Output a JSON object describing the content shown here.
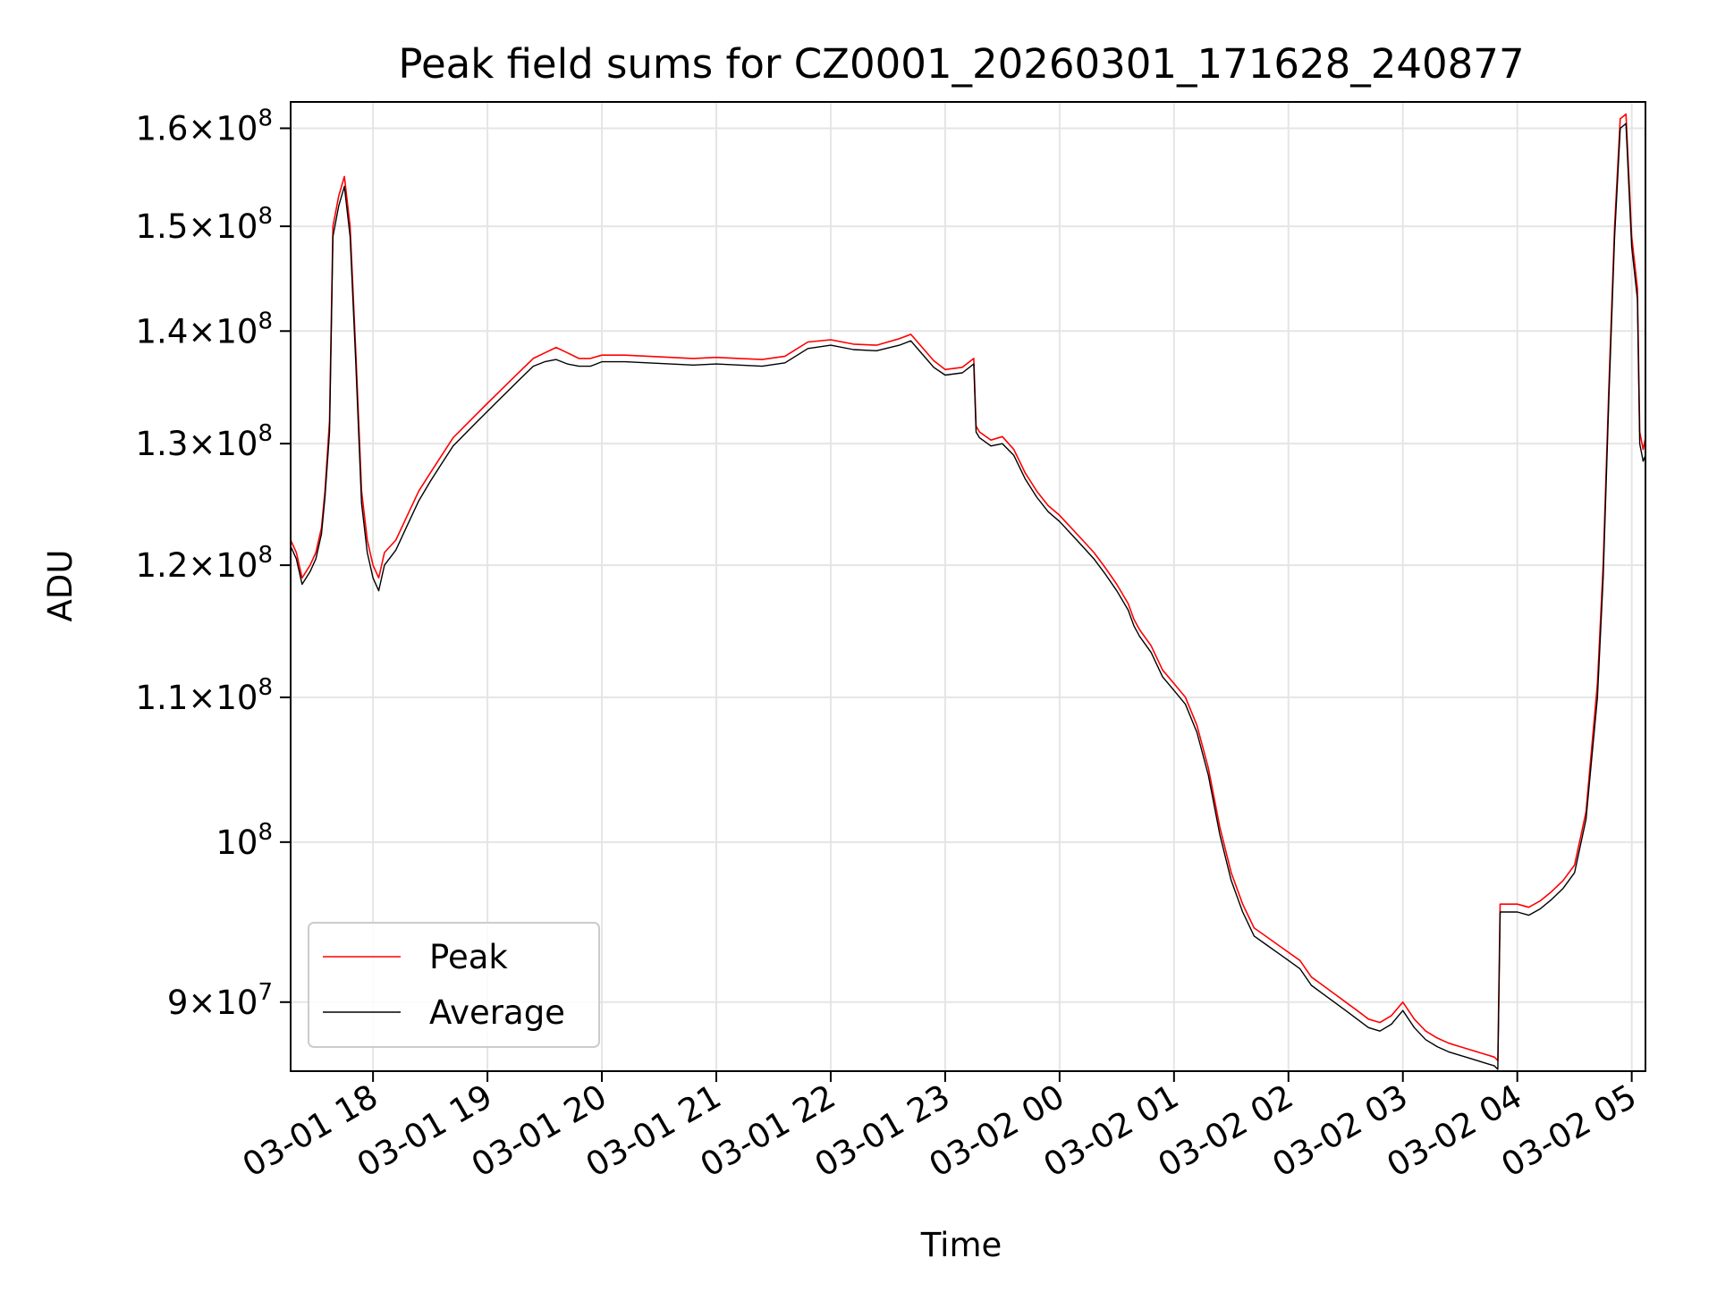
{
  "chart_data": {
    "type": "line",
    "title": "Peak field sums for CZ0001_20260301_171628_240877",
    "xlabel": "Time",
    "ylabel": "ADU",
    "yscale": "log",
    "grid": true,
    "legend_position": "lower-left",
    "x_ticks": [
      "03-01 18",
      "03-01 19",
      "03-01 20",
      "03-01 21",
      "03-01 22",
      "03-01 23",
      "03-02 00",
      "03-02 01",
      "03-02 02",
      "03-02 03",
      "03-02 04",
      "03-02 05"
    ],
    "x_tick_hours": [
      18,
      19,
      20,
      21,
      22,
      23,
      24,
      25,
      26,
      27,
      28,
      29
    ],
    "xlim_hours": [
      17.28,
      29.12
    ],
    "y_ticks": [
      {
        "value": 90000000,
        "mantissa": "9",
        "exponent": "7"
      },
      {
        "value": 100000000,
        "mantissa": "",
        "exponent": "8"
      },
      {
        "value": 110000000,
        "mantissa": "1.1",
        "exponent": "8"
      },
      {
        "value": 120000000,
        "mantissa": "1.2",
        "exponent": "8"
      },
      {
        "value": 130000000,
        "mantissa": "1.3",
        "exponent": "8"
      },
      {
        "value": 140000000,
        "mantissa": "1.4",
        "exponent": "8"
      },
      {
        "value": 150000000,
        "mantissa": "1.5",
        "exponent": "8"
      },
      {
        "value": 160000000,
        "mantissa": "1.6",
        "exponent": "8"
      }
    ],
    "ylim": [
      86000000,
      162800000
    ],
    "series": [
      {
        "name": "Peak",
        "color": "#ff0000",
        "x_hours": [
          17.28,
          17.33,
          17.38,
          17.45,
          17.5,
          17.55,
          17.58,
          17.62,
          17.65,
          17.7,
          17.75,
          17.8,
          17.85,
          17.9,
          17.95,
          18.0,
          18.05,
          18.1,
          18.2,
          18.3,
          18.4,
          18.5,
          18.6,
          18.7,
          18.8,
          18.9,
          19.0,
          19.1,
          19.2,
          19.3,
          19.4,
          19.5,
          19.6,
          19.7,
          19.8,
          19.9,
          20.0,
          20.2,
          20.4,
          20.6,
          20.8,
          21.0,
          21.2,
          21.4,
          21.6,
          21.8,
          22.0,
          22.2,
          22.4,
          22.6,
          22.7,
          22.8,
          22.9,
          23.0,
          23.15,
          23.25,
          23.27,
          23.3,
          23.4,
          23.5,
          23.6,
          23.7,
          23.8,
          23.9,
          24.0,
          24.1,
          24.2,
          24.3,
          24.4,
          24.5,
          24.6,
          24.65,
          24.7,
          24.8,
          24.9,
          25.0,
          25.1,
          25.2,
          25.3,
          25.4,
          25.5,
          25.6,
          25.7,
          25.8,
          25.9,
          26.0,
          26.1,
          26.2,
          26.3,
          26.4,
          26.5,
          26.6,
          26.7,
          26.8,
          26.9,
          27.0,
          27.1,
          27.2,
          27.3,
          27.4,
          27.5,
          27.6,
          27.7,
          27.8,
          27.83,
          27.85,
          28.0,
          28.1,
          28.2,
          28.3,
          28.4,
          28.5,
          28.6,
          28.7,
          28.75,
          28.8,
          28.85,
          28.9,
          28.95,
          29.0,
          29.05,
          29.07,
          29.1,
          29.12
        ],
        "values": [
          122000000,
          121000000,
          119000000,
          120000000,
          121000000,
          123000000,
          126000000,
          132000000,
          150000000,
          153000000,
          155000000,
          150000000,
          138000000,
          126000000,
          122000000,
          120000000,
          119000000,
          121000000,
          122000000,
          124000000,
          126000000,
          127500000,
          129000000,
          130500000,
          131500000,
          132500000,
          133500000,
          134500000,
          135500000,
          136500000,
          137500000,
          138000000,
          138500000,
          138000000,
          137500000,
          137500000,
          137800000,
          137800000,
          137700000,
          137600000,
          137500000,
          137600000,
          137500000,
          137400000,
          137700000,
          139000000,
          139200000,
          138800000,
          138700000,
          139300000,
          139700000,
          138500000,
          137300000,
          136500000,
          136700000,
          137500000,
          131500000,
          131000000,
          130300000,
          130600000,
          129500000,
          127500000,
          126000000,
          124800000,
          124000000,
          123000000,
          122000000,
          121000000,
          119800000,
          118500000,
          117000000,
          115800000,
          115000000,
          113800000,
          112000000,
          111000000,
          110000000,
          108000000,
          105000000,
          101000000,
          98000000,
          96000000,
          94500000,
          94000000,
          93500000,
          93000000,
          92500000,
          91500000,
          91000000,
          90500000,
          90000000,
          89500000,
          89000000,
          88800000,
          89200000,
          90000000,
          89000000,
          88300000,
          87900000,
          87600000,
          87400000,
          87200000,
          87000000,
          86800000,
          86600000,
          96000000,
          96000000,
          95800000,
          96200000,
          96800000,
          97500000,
          98500000,
          102000000,
          111000000,
          120000000,
          135000000,
          150000000,
          161000000,
          161500000,
          149000000,
          144000000,
          131000000,
          129500000,
          130500000
        ]
      },
      {
        "name": "Average",
        "color": "#000000",
        "x_hours": [
          17.28,
          17.33,
          17.38,
          17.45,
          17.5,
          17.55,
          17.58,
          17.62,
          17.65,
          17.7,
          17.75,
          17.8,
          17.85,
          17.9,
          17.95,
          18.0,
          18.05,
          18.1,
          18.2,
          18.3,
          18.4,
          18.5,
          18.6,
          18.7,
          18.8,
          18.9,
          19.0,
          19.1,
          19.2,
          19.3,
          19.4,
          19.5,
          19.6,
          19.7,
          19.8,
          19.9,
          20.0,
          20.2,
          20.4,
          20.6,
          20.8,
          21.0,
          21.2,
          21.4,
          21.6,
          21.8,
          22.0,
          22.2,
          22.4,
          22.6,
          22.7,
          22.8,
          22.9,
          23.0,
          23.15,
          23.25,
          23.27,
          23.3,
          23.4,
          23.5,
          23.6,
          23.7,
          23.8,
          23.9,
          24.0,
          24.1,
          24.2,
          24.3,
          24.4,
          24.5,
          24.6,
          24.65,
          24.7,
          24.8,
          24.9,
          25.0,
          25.1,
          25.2,
          25.3,
          25.4,
          25.5,
          25.6,
          25.7,
          25.8,
          25.9,
          26.0,
          26.1,
          26.2,
          26.3,
          26.4,
          26.5,
          26.6,
          26.7,
          26.8,
          26.9,
          27.0,
          27.1,
          27.2,
          27.3,
          27.4,
          27.5,
          27.6,
          27.7,
          27.8,
          27.83,
          27.85,
          28.0,
          28.1,
          28.2,
          28.3,
          28.4,
          28.5,
          28.6,
          28.7,
          28.75,
          28.8,
          28.85,
          28.9,
          28.95,
          29.0,
          29.05,
          29.07,
          29.1,
          29.12
        ],
        "values": [
          121500000,
          120500000,
          118500000,
          119500000,
          120500000,
          122500000,
          125500000,
          131000000,
          149000000,
          152000000,
          154000000,
          149000000,
          137000000,
          125000000,
          121000000,
          119000000,
          118000000,
          120000000,
          121200000,
          123200000,
          125200000,
          126800000,
          128300000,
          129800000,
          130800000,
          131800000,
          132800000,
          133800000,
          134800000,
          135800000,
          136800000,
          137200000,
          137400000,
          137000000,
          136800000,
          136800000,
          137200000,
          137200000,
          137100000,
          137000000,
          136900000,
          137000000,
          136900000,
          136800000,
          137100000,
          138400000,
          138700000,
          138300000,
          138200000,
          138700000,
          139100000,
          137900000,
          136700000,
          136000000,
          136200000,
          137000000,
          131000000,
          130500000,
          129800000,
          130000000,
          129000000,
          127000000,
          125500000,
          124300000,
          123500000,
          122500000,
          121500000,
          120500000,
          119300000,
          118000000,
          116500000,
          115300000,
          114500000,
          113300000,
          111500000,
          110500000,
          109500000,
          107500000,
          104500000,
          100500000,
          97500000,
          95500000,
          94000000,
          93500000,
          93000000,
          92500000,
          92000000,
          91000000,
          90500000,
          90000000,
          89500000,
          89000000,
          88500000,
          88300000,
          88700000,
          89500000,
          88500000,
          87800000,
          87400000,
          87100000,
          86900000,
          86700000,
          86500000,
          86300000,
          86100000,
          95500000,
          95500000,
          95300000,
          95700000,
          96300000,
          97000000,
          98000000,
          101500000,
          110000000,
          119000000,
          134000000,
          149000000,
          160000000,
          160500000,
          148000000,
          143000000,
          130000000,
          128500000,
          129000000
        ]
      }
    ]
  }
}
